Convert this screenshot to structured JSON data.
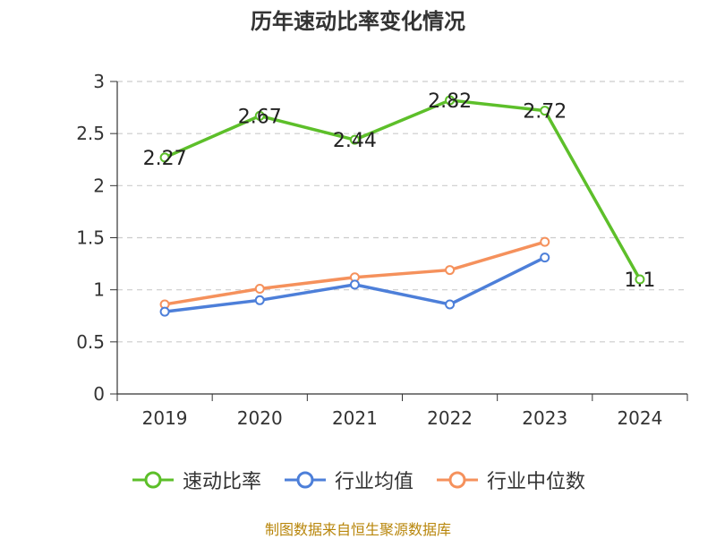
{
  "title": "历年速动比率变化情况",
  "source": "制图数据来自恒生聚源数据库",
  "colors": {
    "axis": "#333333",
    "grid": "#cccccc"
  },
  "chart_data": {
    "type": "line",
    "categories": [
      "2019",
      "2020",
      "2021",
      "2022",
      "2023",
      "2024"
    ],
    "ylim": [
      0,
      3
    ],
    "yticks": [
      0,
      0.5,
      1,
      1.5,
      2,
      2.5,
      3
    ],
    "ytick_labels": [
      "0",
      "0.5",
      "1",
      "1.5",
      "2",
      "2.5",
      "3"
    ],
    "grid": true,
    "legend_position": "bottom",
    "series": [
      {
        "name": "速动比率",
        "color": "#5dbf2a",
        "values": [
          2.27,
          2.67,
          2.44,
          2.82,
          2.72,
          1.1
        ],
        "labels": [
          "2.27",
          "2.67",
          "2.44",
          "2.82",
          "2.72",
          "1.1"
        ],
        "show_labels": true
      },
      {
        "name": "行业均值",
        "color": "#4d7fd9",
        "values": [
          0.79,
          0.9,
          1.05,
          0.86,
          1.31,
          null
        ],
        "show_labels": false
      },
      {
        "name": "行业中位数",
        "color": "#f5915c",
        "values": [
          0.86,
          1.01,
          1.12,
          1.19,
          1.46,
          null
        ],
        "show_labels": false
      }
    ]
  }
}
